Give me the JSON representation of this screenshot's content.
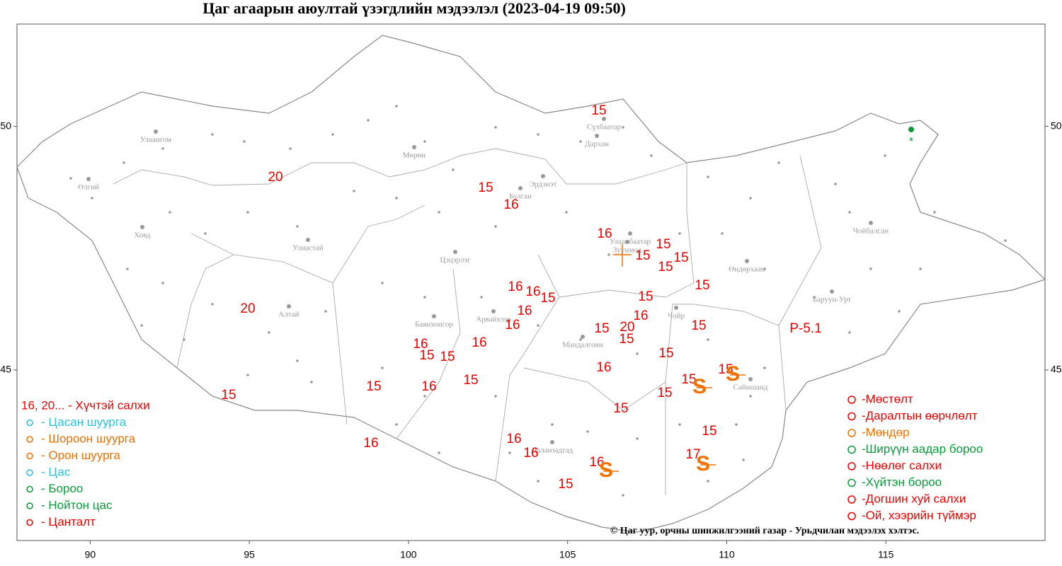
{
  "title": "Цаг агаарын аюултай үзэгдлийн мэдээлэл (2023-04-19 09:50)",
  "map": {
    "xlim": [
      87.7,
      120
    ],
    "ylim": [
      41.5,
      52.1
    ],
    "xticks": [
      90,
      95,
      100,
      105,
      110,
      115
    ],
    "yticks": [
      45,
      50
    ]
  },
  "cities": [
    "Өлгий",
    "Улаангом",
    "Ховд",
    "Мөрөн",
    "Улиастай",
    "Алтай",
    "Баянхонгор",
    "Арвайхээр",
    "Цэцэрлэг",
    "Булган",
    "Эрдэнэт",
    "Сүхбаатар",
    "Дархан",
    "Улаанбаатар",
    "Зуунмод",
    "Мандалгови",
    "Чойр",
    "Даланзадгад",
    "Сайншанд",
    "Өндөрхаан",
    "Баруун-Урт",
    "Чойбалсан"
  ],
  "wind_labels": [
    "15",
    "20",
    "15",
    "16",
    "16",
    "15",
    "15",
    "15",
    "15",
    "15",
    "16",
    "16",
    "15",
    "15",
    "16",
    "16",
    "20",
    "16",
    "15",
    "20",
    "15",
    "15",
    "16",
    "16",
    "15",
    "15",
    "15",
    "16",
    "15",
    "15",
    "15",
    "16",
    "15",
    "15",
    "15",
    "15",
    "15",
    "16",
    "16",
    "16",
    "17",
    "16",
    "15"
  ],
  "pressure_label": "P-5.1",
  "legend_left": [
    "16, 20... - Хүчтэй салхи",
    "- Цасан шуурга",
    "- Шороон шуурга",
    "- Орон шуурга",
    "- Цас",
    "- Бороо",
    "- Нойтон цас",
    "- Цанталт"
  ],
  "legend_right": [
    "-Мөстөлт",
    "-Даралтын өөрчлөлт",
    "-Мөндөр",
    "-Ширүүн аадар бороо",
    "-Нөөлөг салхи",
    "-Хүйтэн бороо",
    "-Догшин хуй салхи",
    "-Ой, хээрийн түймэр"
  ],
  "credit": "© Цаг уур, орчны шинжилгээний газар - Урьдчилан мэдээлэх хэлтэс."
}
